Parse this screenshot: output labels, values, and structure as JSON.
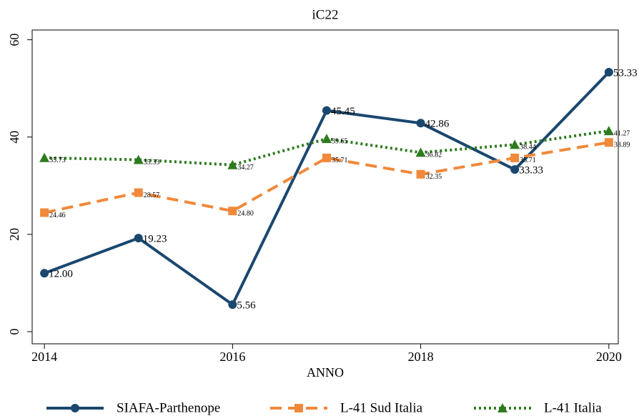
{
  "chart_data": {
    "type": "line",
    "title": "iC22",
    "xlabel": "ANNO",
    "x": [
      2014,
      2015,
      2016,
      2017,
      2018,
      2019,
      2020
    ],
    "xlim": [
      2013.87,
      2020.1
    ],
    "xticks": [
      2014,
      2016,
      2018,
      2020
    ],
    "ylim": [
      -2.5,
      62
    ],
    "yticks": [
      0,
      20,
      40,
      60
    ],
    "grid": false,
    "series": [
      {
        "name": "SIAFA-Parthenope",
        "color": "#1a476f",
        "marker": "circle",
        "dash": "solid",
        "values": [
          12.0,
          19.23,
          5.56,
          45.45,
          42.86,
          33.33,
          53.33
        ],
        "value_labels": [
          "12.00",
          "19.23",
          "5.56",
          "45.45",
          "42.86",
          "33.33",
          "53.33"
        ]
      },
      {
        "name": "L-41 Sud Italia",
        "color": "#f0893b",
        "marker": "square",
        "dash": "dash",
        "values": [
          24.46,
          28.57,
          24.8,
          35.71,
          32.35,
          35.71,
          38.89
        ],
        "value_labels": [
          "24.46",
          "28.57",
          "24.80",
          "35.71",
          "32.35",
          "35.71",
          "38.89"
        ]
      },
      {
        "name": "L-41 Italia",
        "color": "#2e7b1f",
        "marker": "triangle",
        "dash": "dot",
        "values": [
          35.73,
          35.33,
          34.27,
          39.65,
          36.82,
          38.44,
          41.27
        ],
        "value_labels": [
          "35.73",
          "35.33",
          "34.27",
          "39.65",
          "36.82",
          "38.44",
          "41.27"
        ]
      }
    ]
  }
}
